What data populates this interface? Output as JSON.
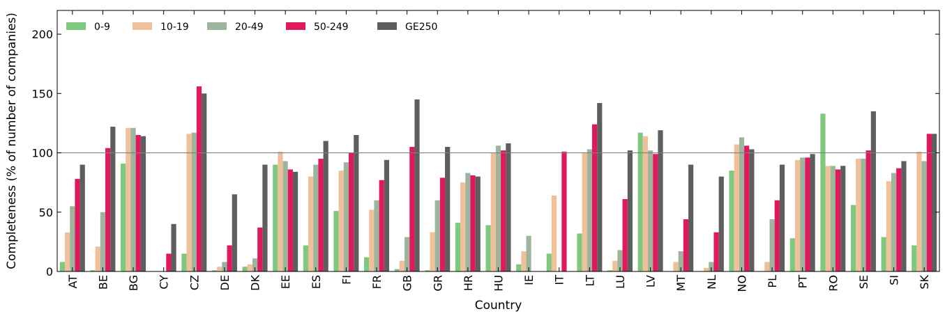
{
  "chart_data": {
    "type": "bar",
    "title": "",
    "xlabel": "Country",
    "ylabel": "Completeness (% of number of companies)",
    "ylim": [
      0,
      220
    ],
    "yticks": [
      0,
      50,
      100,
      150,
      200
    ],
    "reference_line": 100,
    "grid": false,
    "legend_position": "top-left",
    "categories": [
      "AT",
      "BE",
      "BG",
      "CY",
      "CZ",
      "DE",
      "DK",
      "EE",
      "ES",
      "FI",
      "FR",
      "GB",
      "GR",
      "HR",
      "HU",
      "IE",
      "IT",
      "LT",
      "LU",
      "LV",
      "MT",
      "NL",
      "NO",
      "PL",
      "PT",
      "RO",
      "SE",
      "SI",
      "SK"
    ],
    "series": [
      {
        "name": "0-9",
        "color": "#7fc97f",
        "values": [
          8,
          1,
          91,
          0,
          15,
          1,
          4,
          90,
          22,
          51,
          12,
          2,
          1,
          41,
          39,
          6,
          15,
          32,
          1,
          117,
          0,
          0,
          85,
          0,
          28,
          133,
          56,
          29,
          22
        ]
      },
      {
        "name": "10-19",
        "color": "#f0c09a",
        "values": [
          33,
          21,
          121,
          0,
          116,
          4,
          6,
          101,
          80,
          85,
          52,
          9,
          33,
          75,
          100,
          17,
          64,
          100,
          9,
          114,
          8,
          3,
          107,
          8,
          94,
          89,
          95,
          76,
          101
        ]
      },
      {
        "name": "20-49",
        "color": "#9cb59c",
        "values": [
          55,
          50,
          121,
          0,
          117,
          8,
          11,
          93,
          90,
          92,
          60,
          29,
          60,
          83,
          106,
          30,
          0,
          103,
          18,
          102,
          17,
          8,
          113,
          44,
          96,
          89,
          95,
          83,
          93
        ]
      },
      {
        "name": "50-249",
        "color": "#e0195e",
        "values": [
          78,
          104,
          115,
          15,
          156,
          22,
          37,
          86,
          95,
          100,
          77,
          105,
          79,
          81,
          102,
          0,
          101,
          124,
          61,
          99,
          44,
          33,
          106,
          60,
          96,
          86,
          102,
          87,
          116
        ]
      },
      {
        "name": "GE250",
        "color": "#5e5e5e",
        "values": [
          90,
          122,
          114,
          40,
          150,
          65,
          90,
          84,
          110,
          115,
          94,
          145,
          105,
          80,
          108,
          0,
          0,
          142,
          102,
          119,
          90,
          80,
          103,
          90,
          99,
          89,
          135,
          93,
          116
        ]
      }
    ]
  }
}
